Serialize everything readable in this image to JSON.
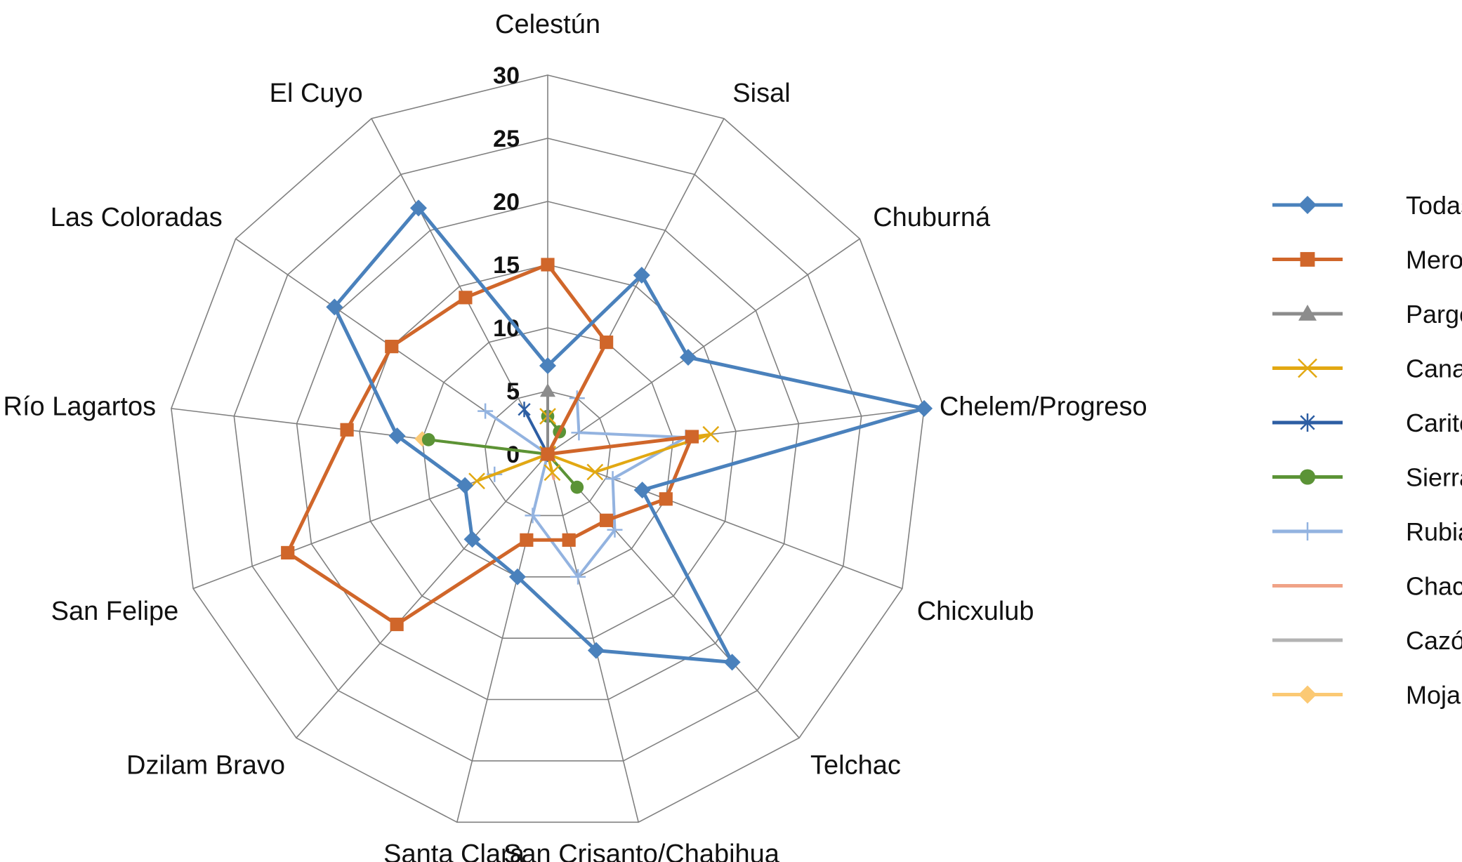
{
  "chart_data": {
    "type": "radar",
    "categories": [
      "Celestún",
      "Sisal",
      "Chuburná",
      "Chelem/Progreso",
      "Chicxulub",
      "Telchac",
      "San Crisanto/Chabihua",
      "Santa Clara",
      "Dzilam Bravo",
      "San Felipe",
      "Río Lagartos",
      "Las Coloradas",
      "El Cuyo"
    ],
    "rlim": [
      0,
      30
    ],
    "ticks": [
      0,
      5,
      10,
      15,
      20,
      25,
      30
    ],
    "tick_labels": [
      "0",
      "5",
      "10",
      "15",
      "20",
      "25",
      "30"
    ],
    "legend_position": "right",
    "series": [
      {
        "name": "Todas",
        "color": "#4a81bc",
        "marker": "diamond",
        "values": [
          7,
          16,
          13.5,
          30,
          8,
          22,
          16,
          10,
          9,
          7,
          12,
          20.5,
          22
        ]
      },
      {
        "name": "Mero",
        "color": "#d0662a",
        "marker": "square",
        "values": [
          15,
          10,
          0,
          11.5,
          10,
          7,
          7,
          7,
          18,
          22,
          16,
          15,
          14
        ]
      },
      {
        "name": "Pargo",
        "color": "#8c8c8c",
        "marker": "triangle",
        "values": [
          5,
          0,
          0,
          0,
          0,
          0,
          0,
          0,
          0,
          0,
          0,
          0,
          0
        ]
      },
      {
        "name": "Canané",
        "color": "#e2a812",
        "marker": "x",
        "values": [
          3,
          0,
          0,
          13,
          4,
          0,
          1.5,
          0,
          0,
          6,
          0,
          0,
          0
        ]
      },
      {
        "name": "Carito",
        "color": "#2d5ea3",
        "marker": "star",
        "values": [
          0,
          0,
          0,
          0,
          0,
          0,
          0,
          0,
          0,
          0,
          0,
          0,
          4
        ]
      },
      {
        "name": "Sierra",
        "color": "#5b9336",
        "marker": "circle",
        "values": [
          3,
          2,
          0,
          0,
          0,
          3.5,
          0,
          0,
          0,
          0,
          9.5,
          0,
          0
        ]
      },
      {
        "name": "Rubia",
        "color": "#93b3e0",
        "marker": "plus",
        "values": [
          0,
          5,
          3,
          11,
          5.5,
          8,
          10,
          5,
          0,
          4.5,
          0,
          6,
          0
        ]
      },
      {
        "name": "Chac chi",
        "color": "#f0a387",
        "marker": "none",
        "values": [
          0,
          1.5,
          0,
          2.5,
          0,
          0,
          2,
          0,
          0,
          0,
          0,
          0,
          0
        ]
      },
      {
        "name": "Cazón",
        "color": "#b3b3b3",
        "marker": "none",
        "values": [
          0,
          0,
          0,
          5,
          0,
          0,
          0,
          0,
          0,
          0,
          0,
          0,
          0
        ]
      },
      {
        "name": "Mojarra",
        "color": "#fbc974",
        "marker": "diamond",
        "values": [
          0,
          0,
          0,
          0,
          0,
          0,
          0,
          0,
          0,
          0,
          10,
          0,
          0
        ]
      }
    ]
  }
}
